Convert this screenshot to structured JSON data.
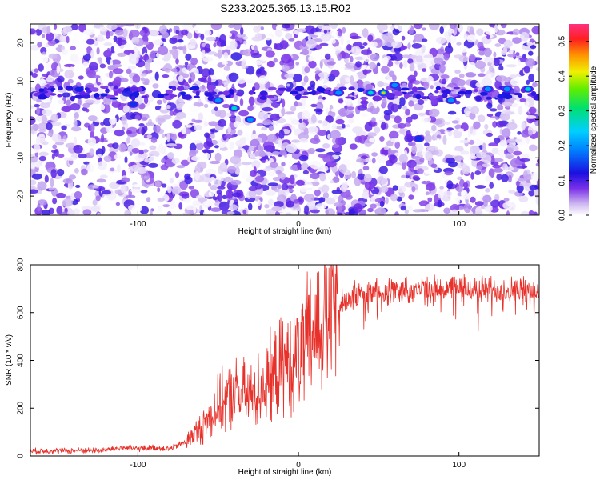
{
  "title": "S233.2025.365.13.15.R02",
  "chart_data": [
    {
      "type": "heatmap",
      "xlabel": "Height of straight line (km)",
      "ylabel": "Frequency (Hz)",
      "xlim": [
        -167,
        150
      ],
      "ylim": [
        -25,
        25
      ],
      "x_ticks": [
        -100,
        0,
        100
      ],
      "y_ticks": [
        -20,
        -10,
        0,
        10,
        20
      ],
      "colorbar": {
        "label": "Normalized spectral amplitude",
        "range": [
          0,
          0.55
        ],
        "ticks": [
          0.0,
          0.1,
          0.2,
          0.3,
          0.4,
          0.5
        ]
      },
      "ridge": {
        "frequency": 7,
        "peaks": [
          {
            "x": -50,
            "y": 5,
            "value": 0.25
          },
          {
            "x": -40,
            "y": 3,
            "value": 0.3
          },
          {
            "x": -30,
            "y": 0,
            "value": 0.2
          },
          {
            "x": -103,
            "y": 4,
            "value": 0.15
          },
          {
            "x": 25,
            "y": 7,
            "value": 0.25
          },
          {
            "x": 45,
            "y": 7,
            "value": 0.3
          },
          {
            "x": 53,
            "y": 7,
            "value": 0.45
          },
          {
            "x": 60,
            "y": 9,
            "value": 0.2
          },
          {
            "x": 75,
            "y": -5,
            "value": 0.15
          },
          {
            "x": 95,
            "y": 5,
            "value": 0.2
          },
          {
            "x": 118,
            "y": 8,
            "value": 0.25
          },
          {
            "x": 130,
            "y": 8,
            "value": 0.25
          },
          {
            "x": 143,
            "y": 8,
            "value": 0.3
          }
        ]
      }
    },
    {
      "type": "line",
      "xlabel": "Height of straight line (km)",
      "ylabel": "SNR (10 * v/v)",
      "xlim": [
        -167,
        150
      ],
      "ylim": [
        0,
        800
      ],
      "x_ticks": [
        -100,
        0,
        100
      ],
      "y_ticks": [
        0,
        200,
        400,
        600,
        800
      ],
      "color": "#e8312a",
      "envelope": {
        "x": [
          -167,
          -120,
          -110,
          -100,
          -90,
          -80,
          -70,
          -60,
          -50,
          -40,
          -30,
          -20,
          -10,
          0,
          10,
          20,
          30,
          50,
          100,
          150
        ],
        "y": [
          20,
          25,
          35,
          30,
          35,
          30,
          60,
          120,
          210,
          260,
          250,
          300,
          370,
          420,
          520,
          610,
          660,
          690,
          700,
          690
        ]
      }
    }
  ]
}
